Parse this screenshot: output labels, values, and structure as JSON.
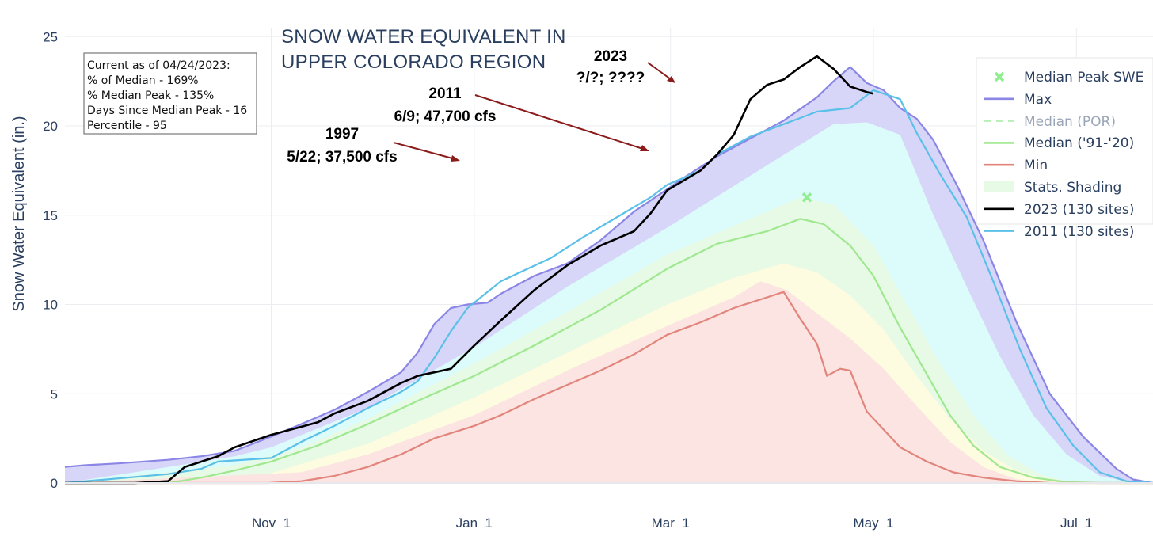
{
  "chart_data": {
    "type": "line",
    "title_lines": [
      "SNOW WATER EQUIVALENT IN",
      "UPPER COLORADO REGION"
    ],
    "xlabel": "",
    "ylabel": "Snow Water Equivalent (in.)",
    "x_range_days": [
      -31,
      296
    ],
    "ylim": [
      0,
      25.5
    ],
    "y_ticks": [
      0,
      5,
      10,
      15,
      20,
      25
    ],
    "x_ticks": [
      {
        "day": 31,
        "label": "Nov  1"
      },
      {
        "day": 92,
        "label": "Jan  1"
      },
      {
        "day": 151,
        "label": "Mar  1"
      },
      {
        "day": 212,
        "label": "May  1"
      },
      {
        "day": 273,
        "label": "Jul  1"
      }
    ],
    "grid": true,
    "legend_position": "top-right",
    "info_box": [
      "Current as of 04/24/2023:",
      "% of Median - 169%",
      "% Median Peak - 135%",
      "Days Since Median Peak - 16",
      "Percentile - 95"
    ],
    "legend": [
      {
        "label": "Median Peak SWE",
        "type": "marker",
        "color": "#90ee90"
      },
      {
        "label": "Max",
        "type": "line",
        "color": "#8b86e6"
      },
      {
        "label": "Median (POR)",
        "type": "dash",
        "color": "#b6f0b6"
      },
      {
        "label": "Median ('91-'20)",
        "type": "line",
        "color": "#9fe88f"
      },
      {
        "label": "Min",
        "type": "line",
        "color": "#e2857c"
      },
      {
        "label": "Stats. Shading",
        "type": "box",
        "color": "#e6fae6"
      },
      {
        "label": "2023 (130 sites)",
        "type": "line",
        "color": "#000000"
      },
      {
        "label": "2011 (130 sites)",
        "type": "line",
        "color": "#5bc0e8"
      }
    ],
    "annotations": [
      {
        "lines": [
          "2023",
          "?/?; ????"
        ]
      },
      {
        "lines": [
          "2011",
          "6/9; 47,700 cfs"
        ]
      },
      {
        "lines": [
          "1997",
          "5/22; 37,500 cfs"
        ]
      }
    ],
    "median_peak": {
      "day": 192,
      "value": 16.0
    },
    "series": [
      {
        "name": "Max",
        "color": "#8b86e6",
        "points": [
          [
            -31,
            0.9
          ],
          [
            -25,
            1.0
          ],
          [
            -15,
            1.1
          ],
          [
            0,
            1.3
          ],
          [
            10,
            1.5
          ],
          [
            20,
            1.8
          ],
          [
            31,
            2.6
          ],
          [
            40,
            3.3
          ],
          [
            50,
            4.1
          ],
          [
            60,
            5.1
          ],
          [
            70,
            6.2
          ],
          [
            75,
            7.3
          ],
          [
            80,
            8.9
          ],
          [
            85,
            9.8
          ],
          [
            90,
            10.0
          ],
          [
            96,
            10.1
          ],
          [
            100,
            10.6
          ],
          [
            110,
            11.6
          ],
          [
            120,
            12.3
          ],
          [
            130,
            13.6
          ],
          [
            140,
            15.2
          ],
          [
            148,
            16.2
          ],
          [
            155,
            17.1
          ],
          [
            165,
            18.3
          ],
          [
            175,
            19.3
          ],
          [
            185,
            20.3
          ],
          [
            195,
            21.6
          ],
          [
            200,
            22.5
          ],
          [
            205,
            23.3
          ],
          [
            210,
            22.4
          ],
          [
            215,
            22.0
          ],
          [
            220,
            21.0
          ],
          [
            225,
            20.4
          ],
          [
            230,
            19.2
          ],
          [
            237,
            16.7
          ],
          [
            245,
            13.6
          ],
          [
            255,
            9.0
          ],
          [
            265,
            5.0
          ],
          [
            275,
            2.6
          ],
          [
            285,
            0.8
          ],
          [
            290,
            0.2
          ],
          [
            296,
            0.0
          ]
        ]
      },
      {
        "name": "Median ('91-'20)",
        "color": "#9fe88f",
        "points": [
          [
            -31,
            0
          ],
          [
            0,
            0
          ],
          [
            10,
            0.3
          ],
          [
            20,
            0.7
          ],
          [
            31,
            1.2
          ],
          [
            45,
            2.1
          ],
          [
            60,
            3.3
          ],
          [
            75,
            4.6
          ],
          [
            92,
            6.0
          ],
          [
            110,
            7.7
          ],
          [
            130,
            9.7
          ],
          [
            150,
            12.0
          ],
          [
            165,
            13.4
          ],
          [
            180,
            14.1
          ],
          [
            190,
            14.8
          ],
          [
            197,
            14.5
          ],
          [
            205,
            13.3
          ],
          [
            212,
            11.6
          ],
          [
            220,
            8.7
          ],
          [
            228,
            6.1
          ],
          [
            235,
            3.8
          ],
          [
            242,
            2.1
          ],
          [
            250,
            0.9
          ],
          [
            260,
            0.3
          ],
          [
            270,
            0.05
          ],
          [
            280,
            0
          ],
          [
            296,
            0
          ]
        ]
      },
      {
        "name": "Min",
        "color": "#e2857c",
        "points": [
          [
            -31,
            0
          ],
          [
            30,
            0
          ],
          [
            40,
            0.1
          ],
          [
            50,
            0.4
          ],
          [
            60,
            0.9
          ],
          [
            70,
            1.6
          ],
          [
            80,
            2.5
          ],
          [
            92,
            3.2
          ],
          [
            100,
            3.8
          ],
          [
            110,
            4.7
          ],
          [
            120,
            5.5
          ],
          [
            130,
            6.3
          ],
          [
            140,
            7.2
          ],
          [
            150,
            8.3
          ],
          [
            160,
            9.0
          ],
          [
            170,
            9.8
          ],
          [
            180,
            10.4
          ],
          [
            185,
            10.7
          ],
          [
            190,
            9.2
          ],
          [
            195,
            7.8
          ],
          [
            198,
            6.0
          ],
          [
            202,
            6.4
          ],
          [
            205,
            6.3
          ],
          [
            210,
            4.0
          ],
          [
            215,
            3.0
          ],
          [
            220,
            2.0
          ],
          [
            228,
            1.2
          ],
          [
            236,
            0.6
          ],
          [
            245,
            0.3
          ],
          [
            255,
            0.1
          ],
          [
            265,
            0
          ],
          [
            296,
            0
          ]
        ]
      },
      {
        "name": "2023 (130 sites)",
        "color": "#000000",
        "points": [
          [
            -31,
            0
          ],
          [
            -10,
            0
          ],
          [
            0,
            0.1
          ],
          [
            5,
            0.9
          ],
          [
            15,
            1.5
          ],
          [
            20,
            2.0
          ],
          [
            31,
            2.7
          ],
          [
            45,
            3.4
          ],
          [
            50,
            3.9
          ],
          [
            60,
            4.6
          ],
          [
            70,
            5.6
          ],
          [
            75,
            6.0
          ],
          [
            85,
            6.4
          ],
          [
            92,
            7.7
          ],
          [
            100,
            9.1
          ],
          [
            110,
            10.8
          ],
          [
            120,
            12.2
          ],
          [
            130,
            13.3
          ],
          [
            140,
            14.1
          ],
          [
            145,
            15.1
          ],
          [
            150,
            16.4
          ],
          [
            160,
            17.5
          ],
          [
            165,
            18.4
          ],
          [
            170,
            19.5
          ],
          [
            175,
            21.5
          ],
          [
            180,
            22.3
          ],
          [
            185,
            22.6
          ],
          [
            190,
            23.3
          ],
          [
            195,
            23.9
          ],
          [
            200,
            23.2
          ],
          [
            205,
            22.2
          ],
          [
            210,
            21.9
          ],
          [
            212,
            21.8
          ]
        ]
      },
      {
        "name": "2011 (130 sites)",
        "color": "#5bc0e8",
        "points": [
          [
            -31,
            0
          ],
          [
            0,
            0.5
          ],
          [
            10,
            0.8
          ],
          [
            15,
            1.2
          ],
          [
            31,
            1.4
          ],
          [
            40,
            2.3
          ],
          [
            50,
            3.2
          ],
          [
            60,
            4.2
          ],
          [
            70,
            5.1
          ],
          [
            75,
            5.7
          ],
          [
            80,
            7.0
          ],
          [
            85,
            8.5
          ],
          [
            90,
            9.8
          ],
          [
            100,
            11.3
          ],
          [
            115,
            12.6
          ],
          [
            125,
            13.8
          ],
          [
            135,
            14.9
          ],
          [
            145,
            16.0
          ],
          [
            150,
            16.7
          ],
          [
            160,
            17.5
          ],
          [
            165,
            18.4
          ],
          [
            175,
            19.4
          ],
          [
            185,
            20.1
          ],
          [
            195,
            20.8
          ],
          [
            205,
            21.0
          ],
          [
            212,
            22.0
          ],
          [
            220,
            21.5
          ],
          [
            225,
            19.6
          ],
          [
            232,
            17.3
          ],
          [
            240,
            14.9
          ],
          [
            248,
            11.3
          ],
          [
            256,
            7.5
          ],
          [
            264,
            4.2
          ],
          [
            272,
            2.1
          ],
          [
            280,
            0.6
          ],
          [
            288,
            0.1
          ],
          [
            296,
            0
          ]
        ]
      }
    ],
    "bands": [
      {
        "name": "Stats. Shading (upper)",
        "color": "#dcfbfb",
        "points": [
          [
            -31,
            0
          ],
          [
            0,
            0.9
          ],
          [
            20,
            1.5
          ],
          [
            31,
            2.0
          ],
          [
            60,
            4.2
          ],
          [
            92,
            7.6
          ],
          [
            120,
            11.0
          ],
          [
            150,
            14.3
          ],
          [
            180,
            17.8
          ],
          [
            200,
            20.1
          ],
          [
            210,
            20.2
          ],
          [
            220,
            19.5
          ],
          [
            230,
            15.0
          ],
          [
            240,
            11.0
          ],
          [
            250,
            7.1
          ],
          [
            260,
            3.8
          ],
          [
            270,
            1.6
          ],
          [
            280,
            0.4
          ],
          [
            290,
            0
          ],
          [
            296,
            0
          ]
        ]
      },
      {
        "name": "Stats. Shading (70th)",
        "color": "#e6fae6",
        "points": [
          [
            -31,
            0
          ],
          [
            20,
            1.0
          ],
          [
            40,
            2.0
          ],
          [
            60,
            3.6
          ],
          [
            92,
            6.7
          ],
          [
            120,
            9.6
          ],
          [
            150,
            12.8
          ],
          [
            175,
            14.8
          ],
          [
            190,
            16.0
          ],
          [
            200,
            15.6
          ],
          [
            212,
            13.3
          ],
          [
            222,
            10.0
          ],
          [
            232,
            6.7
          ],
          [
            242,
            3.8
          ],
          [
            252,
            1.6
          ],
          [
            262,
            0.5
          ],
          [
            272,
            0
          ],
          [
            296,
            0
          ]
        ]
      },
      {
        "name": "Stats. Shading (30th)",
        "color": "#fdfbe0",
        "points": [
          [
            -31,
            0
          ],
          [
            30,
            0.5
          ],
          [
            60,
            2.2
          ],
          [
            92,
            4.8
          ],
          [
            120,
            7.3
          ],
          [
            150,
            10.0
          ],
          [
            170,
            11.5
          ],
          [
            185,
            12.3
          ],
          [
            195,
            11.8
          ],
          [
            205,
            10.5
          ],
          [
            215,
            8.6
          ],
          [
            225,
            6.0
          ],
          [
            235,
            3.6
          ],
          [
            245,
            1.8
          ],
          [
            255,
            0.7
          ],
          [
            265,
            0.1
          ],
          [
            275,
            0
          ],
          [
            296,
            0
          ]
        ]
      },
      {
        "name": "Stats. Shading (10th)",
        "color": "#fbe4e1",
        "points": [
          [
            -31,
            0
          ],
          [
            40,
            0.6
          ],
          [
            60,
            1.6
          ],
          [
            92,
            3.8
          ],
          [
            120,
            6.3
          ],
          [
            150,
            8.8
          ],
          [
            170,
            10.4
          ],
          [
            178,
            11.3
          ],
          [
            186,
            10.8
          ],
          [
            195,
            9.5
          ],
          [
            205,
            8.1
          ],
          [
            215,
            6.4
          ],
          [
            225,
            4.3
          ],
          [
            235,
            2.3
          ],
          [
            245,
            0.9
          ],
          [
            255,
            0.2
          ],
          [
            265,
            0
          ],
          [
            296,
            0
          ]
        ]
      }
    ]
  }
}
